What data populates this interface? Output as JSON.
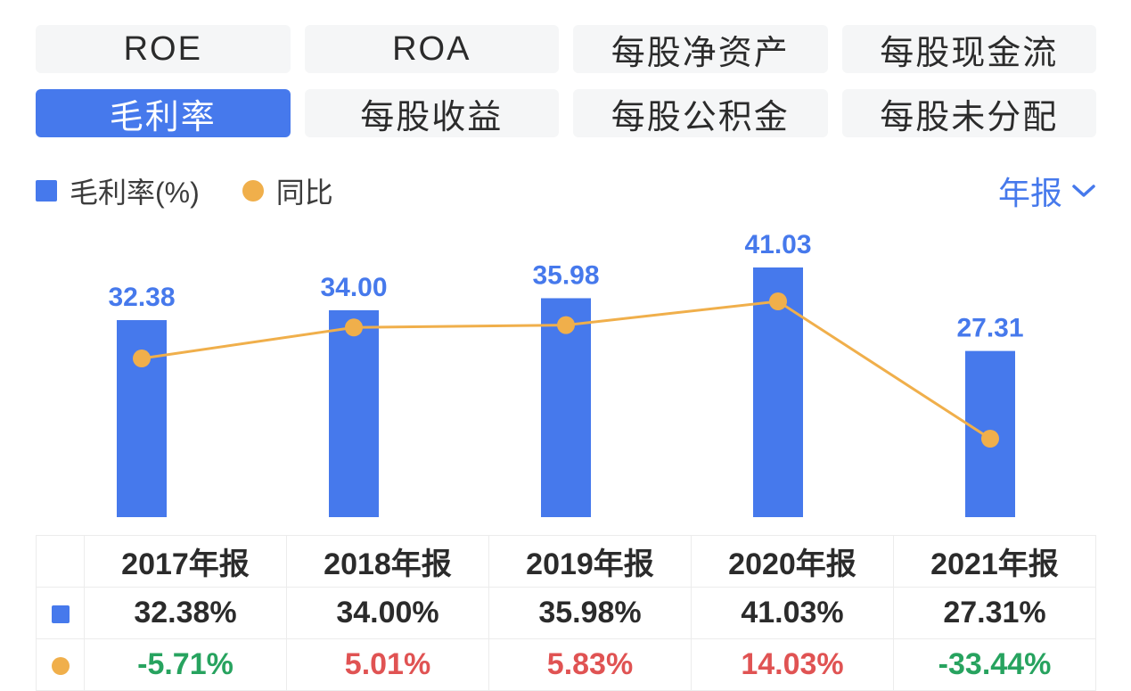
{
  "colors": {
    "blue": "#4679EC",
    "orange": "#F0AF4B",
    "tab_bg": "#F5F6F7",
    "up_red": "#E05353",
    "down_green": "#27A35F"
  },
  "tabs": {
    "items": [
      {
        "label": "ROE",
        "active": false
      },
      {
        "label": "ROA",
        "active": false
      },
      {
        "label": "每股净资产",
        "active": false
      },
      {
        "label": "每股现金流",
        "active": false
      },
      {
        "label": "毛利率",
        "active": true
      },
      {
        "label": "每股收益",
        "active": false
      },
      {
        "label": "每股公积金",
        "active": false
      },
      {
        "label": "每股未分配",
        "active": false
      }
    ]
  },
  "legend": {
    "bar_label": "毛利率(%)",
    "line_label": "同比"
  },
  "period_selector": {
    "label": "年报"
  },
  "chart_data": {
    "type": "bar",
    "categories": [
      "2017年报",
      "2018年报",
      "2019年报",
      "2020年报",
      "2021年报"
    ],
    "series": [
      {
        "name": "毛利率(%)",
        "type": "bar",
        "values": [
          32.38,
          34.0,
          35.98,
          41.03,
          27.31
        ],
        "labels": [
          "32.38",
          "34.00",
          "35.98",
          "41.03",
          "27.31"
        ]
      },
      {
        "name": "同比",
        "type": "line",
        "values": [
          -5.71,
          5.01,
          5.83,
          14.03,
          -33.44
        ]
      }
    ],
    "bar_ylim": [
      0,
      41.03
    ],
    "grid": false,
    "legend_position": "top-left"
  },
  "table": {
    "columns": [
      "",
      "2017年报",
      "2018年报",
      "2019年报",
      "2020年报",
      "2021年报"
    ],
    "rows": [
      {
        "icon": "blue-square",
        "values": [
          "32.38%",
          "34.00%",
          "35.98%",
          "41.03%",
          "27.31%"
        ],
        "colors": [
          "dark",
          "dark",
          "dark",
          "dark",
          "dark"
        ]
      },
      {
        "icon": "orange-circle",
        "values": [
          "-5.71%",
          "5.01%",
          "5.83%",
          "14.03%",
          "-33.44%"
        ],
        "colors": [
          "green",
          "red",
          "red",
          "red",
          "green"
        ]
      }
    ]
  }
}
